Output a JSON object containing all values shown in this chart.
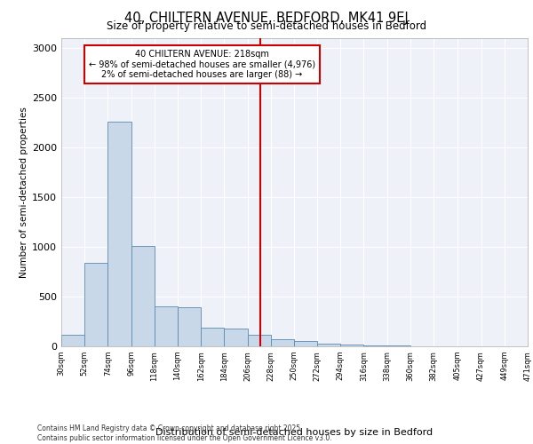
{
  "title1": "40, CHILTERN AVENUE, BEDFORD, MK41 9EJ",
  "title2": "Size of property relative to semi-detached houses in Bedford",
  "xlabel": "Distribution of semi-detached houses by size in Bedford",
  "ylabel": "Number of semi-detached properties",
  "property_size": 218,
  "property_label": "40 CHILTERN AVENUE: 218sqm",
  "pct_smaller": 98,
  "count_smaller": 4976,
  "pct_larger": 2,
  "count_larger": 88,
  "bin_edges": [
    30,
    52,
    74,
    96,
    118,
    140,
    162,
    184,
    206,
    228,
    250,
    272,
    294,
    316,
    338,
    360,
    382,
    405,
    427,
    449,
    471
  ],
  "bar_heights": [
    120,
    840,
    2260,
    1010,
    400,
    390,
    190,
    175,
    115,
    75,
    55,
    30,
    20,
    10,
    5,
    2,
    1,
    1,
    0,
    1
  ],
  "bar_color": "#c8d8e8",
  "bar_edge_color": "#5a8ab0",
  "vline_color": "#cc0000",
  "vline_x": 218,
  "annotation_box_color": "#cc0000",
  "background_color": "#eef2f8",
  "ylim": [
    0,
    3100
  ],
  "yticks": [
    0,
    500,
    1000,
    1500,
    2000,
    2500,
    3000
  ],
  "footer": "Contains HM Land Registry data © Crown copyright and database right 2025.\nContains public sector information licensed under the Open Government Licence v3.0."
}
